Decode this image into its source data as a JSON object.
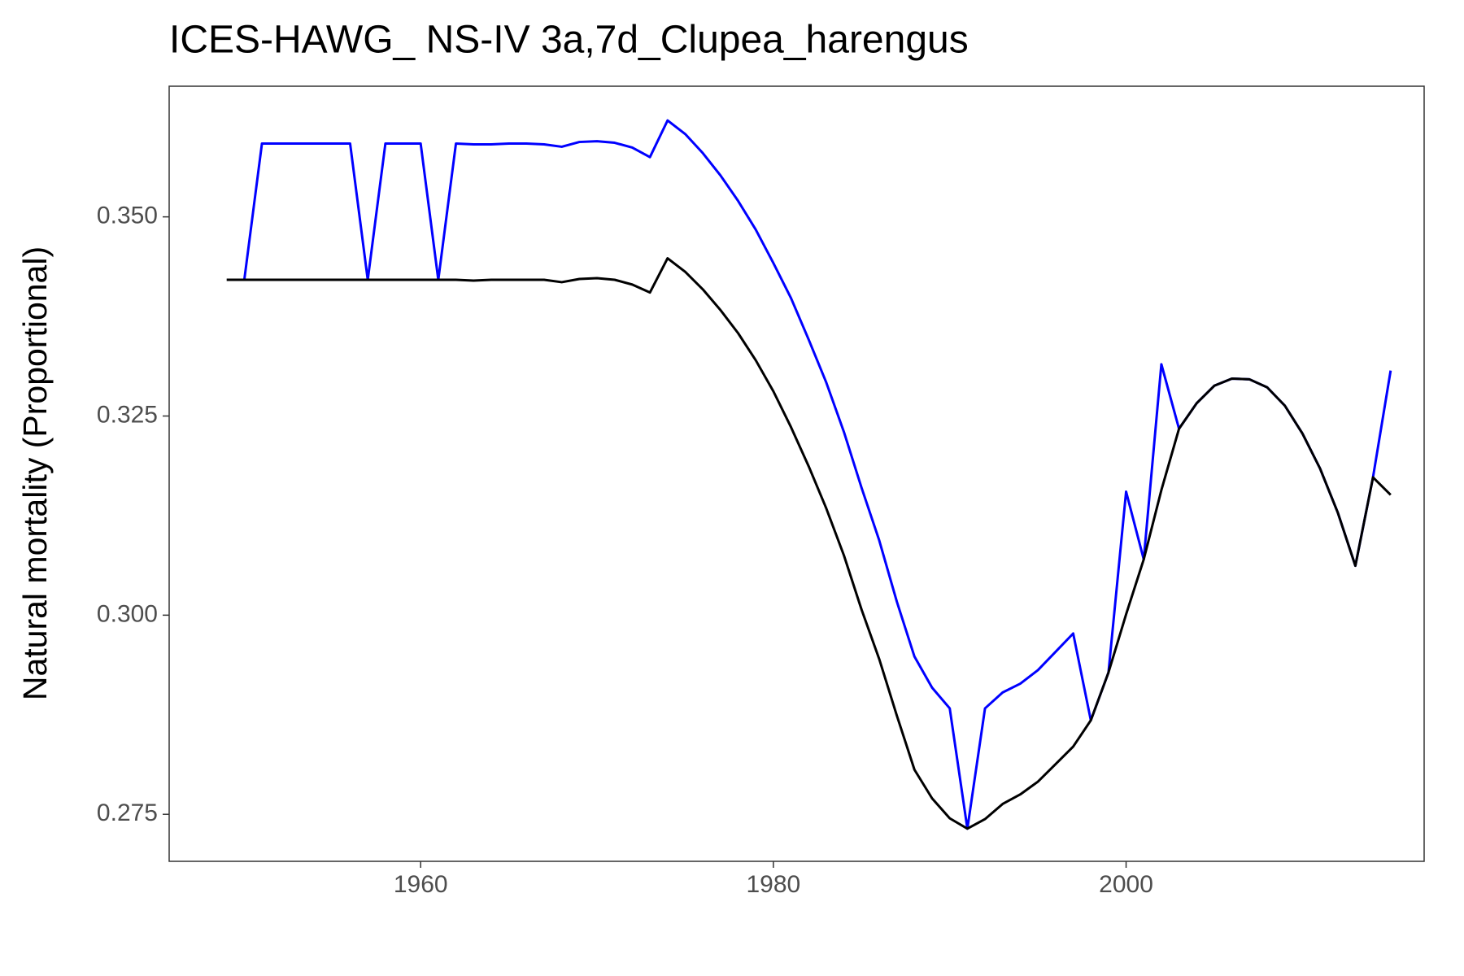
{
  "chart_data": {
    "type": "line",
    "title": "ICES-HAWG_ NS-IV 3a,7d_Clupea_harengus",
    "y_label": "Natural mortality (Proportional)",
    "x": [
      1949,
      1950,
      1951,
      1952,
      1953,
      1954,
      1955,
      1956,
      1957,
      1958,
      1959,
      1960,
      1961,
      1962,
      1963,
      1964,
      1965,
      1966,
      1967,
      1968,
      1969,
      1970,
      1971,
      1972,
      1973,
      1974,
      1975,
      1976,
      1977,
      1978,
      1979,
      1980,
      1981,
      1982,
      1983,
      1984,
      1985,
      1986,
      1987,
      1988,
      1989,
      1990,
      1991,
      1992,
      1993,
      1994,
      1995,
      1996,
      1997,
      1998,
      1999,
      2000,
      2001,
      2002,
      2003,
      2004,
      2005,
      2006,
      2007,
      2008,
      2009,
      2010,
      2011,
      2012,
      2013,
      2014,
      2015
    ],
    "series": [
      {
        "color": "#0000ff",
        "values": [
          null,
          0.3421,
          0.3592,
          0.3592,
          0.3592,
          0.3592,
          0.3592,
          0.3592,
          0.3421,
          0.3592,
          0.3592,
          0.3592,
          0.3421,
          0.3592,
          0.3591,
          0.3591,
          0.3592,
          0.3592,
          0.3591,
          0.3588,
          0.3594,
          0.3595,
          0.3593,
          0.3587,
          0.3575,
          0.3621,
          0.3604,
          0.358,
          0.3552,
          0.352,
          0.3484,
          0.3442,
          0.3398,
          0.3346,
          0.3292,
          0.323,
          0.316,
          0.3094,
          0.3017,
          0.2948,
          0.2909,
          0.2883,
          0.2732,
          0.2883,
          0.2903,
          0.2914,
          0.2931,
          0.2954,
          0.2977,
          0.2868,
          0.2928,
          0.3155,
          0.307,
          0.3315,
          0.3234,
          0.3266,
          0.3288,
          0.3297,
          0.3296,
          0.3286,
          0.3263,
          0.3228,
          0.3184,
          0.3129,
          0.3062,
          0.3173,
          0.3307
        ]
      },
      {
        "color": "#000000",
        "values": [
          0.3421,
          0.3421,
          0.3421,
          0.3421,
          0.3421,
          0.3421,
          0.3421,
          0.3421,
          0.3421,
          0.3421,
          0.3421,
          0.3421,
          0.3421,
          0.3421,
          0.342,
          0.3421,
          0.3421,
          0.3421,
          0.3421,
          0.3418,
          0.3422,
          0.3423,
          0.3421,
          0.3415,
          0.3405,
          0.3448,
          0.3431,
          0.3409,
          0.3383,
          0.3354,
          0.332,
          0.3281,
          0.3236,
          0.3187,
          0.3134,
          0.3075,
          0.3007,
          0.2945,
          0.2874,
          0.2806,
          0.277,
          0.2745,
          0.2732,
          0.2744,
          0.2763,
          0.2775,
          0.2791,
          0.2813,
          0.2835,
          0.2868,
          0.2928,
          0.3001,
          0.307,
          0.3157,
          0.3234,
          0.3266,
          0.3288,
          0.3297,
          0.3296,
          0.3286,
          0.3263,
          0.3228,
          0.3184,
          0.3129,
          0.3062,
          0.3173,
          0.3151
        ]
      }
    ],
    "xlim": [
      1945.74,
      2016.9
    ],
    "xticks": [
      1960,
      1980,
      2000
    ],
    "ylim": [
      0.2691,
      0.3664
    ],
    "yticks": [
      {
        "value": 0.275,
        "label": "0.275"
      },
      {
        "value": 0.3,
        "label": "0.300"
      },
      {
        "value": 0.325,
        "label": "0.325"
      },
      {
        "value": 0.35,
        "label": "0.350"
      }
    ],
    "grid": false
  }
}
